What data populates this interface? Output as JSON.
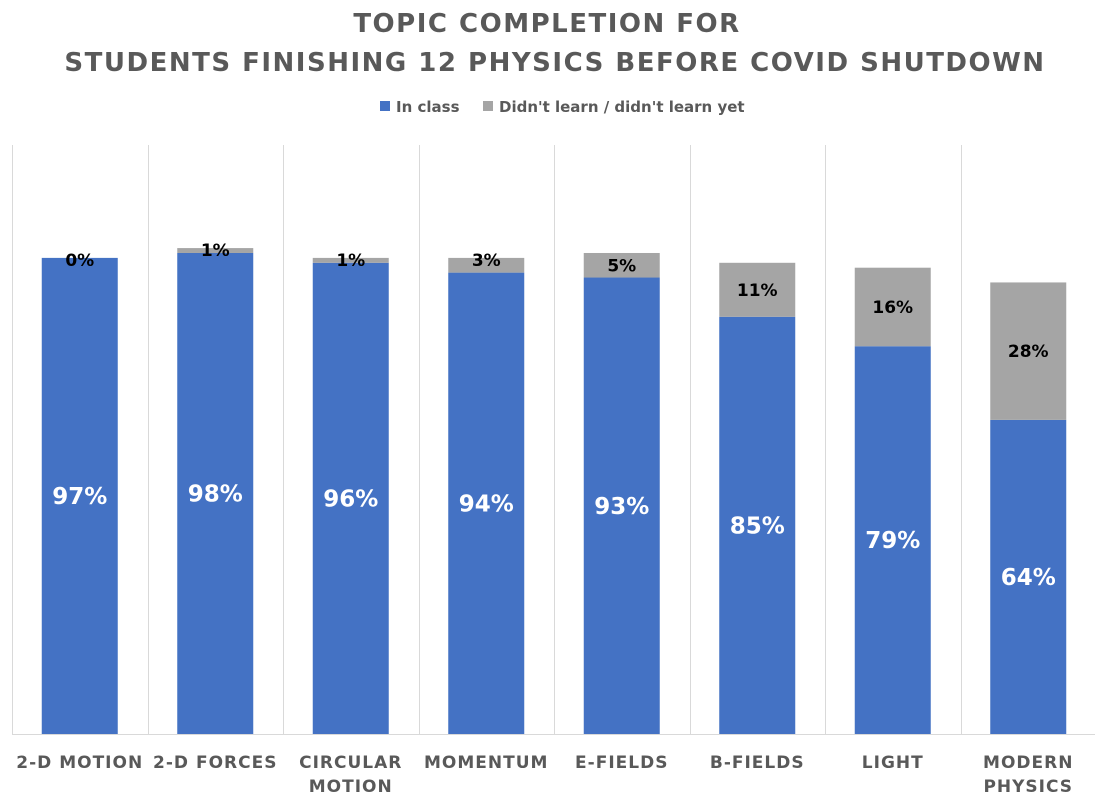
{
  "chart_data": {
    "type": "bar",
    "stacked": true,
    "title_lines": [
      "TOPIC COMPLETION FOR",
      "STUDENTS FINISHING 12 PHYSICS BEFORE COVID SHUTDOWN"
    ],
    "legend": {
      "position": "top"
    },
    "categories": [
      [
        "2-D MOTION"
      ],
      [
        "2-D FORCES"
      ],
      [
        "CIRCULAR",
        "MOTION"
      ],
      [
        "MOMENTUM"
      ],
      [
        "E-FIELDS"
      ],
      [
        "B-FIELDS"
      ],
      [
        "LIGHT"
      ],
      [
        "MODERN",
        "PHYSICS"
      ]
    ],
    "series": [
      {
        "name": "In class",
        "color": "#4472C4",
        "values": [
          97,
          98,
          96,
          94,
          93,
          85,
          79,
          64
        ],
        "labels": [
          "97%",
          "98%",
          "96%",
          "94%",
          "93%",
          "85%",
          "79%",
          "64%"
        ]
      },
      {
        "name": "Didn't learn / didn't learn yet",
        "color": "#A5A5A5",
        "values": [
          0,
          1,
          1,
          3,
          5,
          11,
          16,
          28
        ],
        "labels": [
          "0%",
          "1%",
          "1%",
          "3%",
          "5%",
          "11%",
          "16%",
          "28%"
        ]
      }
    ],
    "ylim": [
      0,
      120
    ],
    "grid": "vertical-category-separators"
  }
}
